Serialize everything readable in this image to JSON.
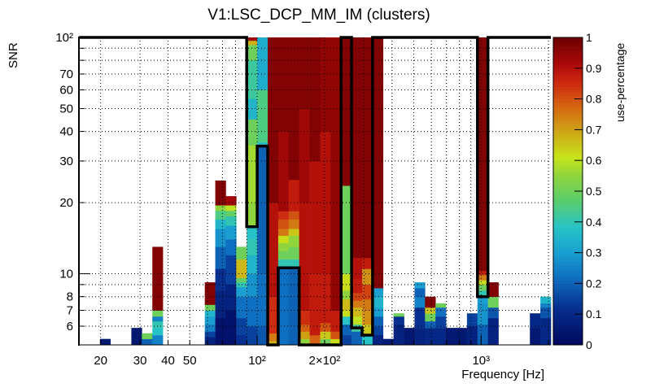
{
  "chart_data": {
    "type": "heatmap",
    "title": "V1:LSC_DCP_MM_IM (clusters)",
    "xlabel": "Frequency [Hz]",
    "ylabel": "SNR",
    "zlabel": "use-percentage",
    "xscale": "log",
    "yscale": "log",
    "xlim": [
      16,
      2048
    ],
    "ylim": [
      5,
      100
    ],
    "zlim": [
      0,
      1
    ],
    "n_freq_bins": 45,
    "grid": true,
    "x_ticks": [
      {
        "value": 20,
        "label": "20"
      },
      {
        "value": 30,
        "label": "30"
      },
      {
        "value": 40,
        "label": "40"
      },
      {
        "value": 50,
        "label": "50"
      },
      {
        "value": 100,
        "label": "10²"
      },
      {
        "value": 200,
        "label": "2×10²"
      },
      {
        "value": 1000,
        "label": "10³"
      }
    ],
    "y_ticks": [
      {
        "value": 6,
        "label": "6"
      },
      {
        "value": 7,
        "label": "7"
      },
      {
        "value": 8,
        "label": "8"
      },
      {
        "value": 10,
        "label": "10"
      },
      {
        "value": 20,
        "label": "20"
      },
      {
        "value": 30,
        "label": "30"
      },
      {
        "value": 40,
        "label": "40"
      },
      {
        "value": 50,
        "label": "50"
      },
      {
        "value": 60,
        "label": "60"
      },
      {
        "value": 70,
        "label": "70"
      },
      {
        "value": 100,
        "label": "10²"
      }
    ],
    "z_ticks": [
      "0",
      "0.1",
      "0.2",
      "0.3",
      "0.4",
      "0.5",
      "0.6",
      "0.7",
      "0.8",
      "0.9",
      "1"
    ],
    "columns_note": "each column: freq bin index, segments bottom-up as [upper SNR, use-percentage]",
    "columns": [
      {
        "bin": 2,
        "segments": [
          [
            5.3,
            0.05
          ]
        ]
      },
      {
        "bin": 5,
        "segments": [
          [
            5.9,
            0.05
          ]
        ]
      },
      {
        "bin": 6,
        "segments": [
          [
            5.3,
            0.2
          ],
          [
            5.6,
            0.5
          ]
        ]
      },
      {
        "bin": 7,
        "segments": [
          [
            5.5,
            0.25
          ],
          [
            5.9,
            0.38
          ],
          [
            6.3,
            0.4
          ],
          [
            6.6,
            0.25
          ],
          [
            7.0,
            0.5
          ],
          [
            13.0,
            0.97
          ]
        ]
      },
      {
        "bin": 12,
        "segments": [
          [
            5.4,
            0.08
          ],
          [
            5.7,
            0.15
          ],
          [
            6.1,
            0.25
          ],
          [
            6.6,
            0.3
          ],
          [
            7.0,
            0.35
          ],
          [
            7.4,
            0.5
          ],
          [
            9.2,
            0.97
          ]
        ]
      },
      {
        "bin": 13,
        "segments": [
          [
            6.5,
            0.03
          ],
          [
            8.5,
            0.08
          ],
          [
            10.5,
            0.12
          ],
          [
            13,
            0.2
          ],
          [
            15.5,
            0.28
          ],
          [
            17,
            0.35
          ],
          [
            18.5,
            0.45
          ],
          [
            19.5,
            0.55
          ],
          [
            24.8,
            0.97
          ]
        ]
      },
      {
        "bin": 14,
        "segments": [
          [
            7,
            0.03
          ],
          [
            9,
            0.08
          ],
          [
            12,
            0.15
          ],
          [
            14,
            0.22
          ],
          [
            16,
            0.3
          ],
          [
            17.5,
            0.4
          ],
          [
            18.5,
            0.48
          ],
          [
            19.5,
            0.6
          ],
          [
            21.3,
            0.93
          ]
        ]
      },
      {
        "bin": 15,
        "segments": [
          [
            5.5,
            0.12
          ],
          [
            6.5,
            0.15
          ],
          [
            8,
            0.22
          ],
          [
            8.8,
            0.3
          ],
          [
            9.2,
            0.4
          ],
          [
            9.6,
            0.48
          ],
          [
            11.5,
            0.67
          ],
          [
            13,
            0.5
          ]
        ]
      },
      {
        "bin": 16,
        "segments": [
          [
            6,
            0.15
          ],
          [
            8,
            0.22
          ],
          [
            10,
            0.28
          ],
          [
            12,
            0.35
          ],
          [
            14,
            0.4
          ],
          [
            16,
            0.38
          ],
          [
            20,
            0.55
          ],
          [
            35,
            0.57
          ],
          [
            45,
            0.5
          ],
          [
            55,
            0.35
          ],
          [
            80,
            0.42
          ],
          [
            93,
            0.5
          ],
          [
            97,
            0.68
          ],
          [
            100,
            0.93
          ]
        ]
      },
      {
        "bin": 17,
        "segments": [
          [
            6,
            0.18
          ],
          [
            10,
            0.22
          ],
          [
            34.7,
            0.2
          ],
          [
            36,
            0.37
          ],
          [
            60,
            0.45
          ],
          [
            100,
            0.33
          ]
        ]
      },
      {
        "bin": 18,
        "segments": [
          [
            5.2,
            0.68
          ],
          [
            5.6,
            0.75
          ],
          [
            8,
            0.85
          ],
          [
            20,
            0.9
          ],
          [
            100,
            0.97
          ]
        ]
      },
      {
        "bin": 19,
        "segments": [
          [
            10.6,
            0.22
          ],
          [
            11.5,
            0.4
          ],
          [
            12.5,
            0.5
          ],
          [
            13.5,
            0.55
          ],
          [
            14.5,
            0.62
          ],
          [
            15.5,
            0.75
          ],
          [
            17,
            0.8
          ],
          [
            18.4,
            0.85
          ],
          [
            40,
            0.93
          ],
          [
            100,
            0.97
          ]
        ]
      },
      {
        "bin": 20,
        "segments": [
          [
            10.6,
            0.2
          ],
          [
            11.5,
            0.4
          ],
          [
            13,
            0.5
          ],
          [
            14.5,
            0.55
          ],
          [
            15.5,
            0.65
          ],
          [
            17,
            0.75
          ],
          [
            18.4,
            0.8
          ],
          [
            25,
            0.88
          ],
          [
            100,
            0.97
          ]
        ]
      },
      {
        "bin": 21,
        "segments": [
          [
            5.3,
            0.55
          ],
          [
            5.7,
            0.7
          ],
          [
            6.1,
            0.78
          ],
          [
            7,
            0.85
          ],
          [
            20,
            0.9
          ],
          [
            50,
            0.93
          ],
          [
            100,
            0.97
          ]
        ]
      },
      {
        "bin": 22,
        "segments": [
          [
            5.5,
            0.78
          ],
          [
            10,
            0.88
          ],
          [
            30,
            0.9
          ],
          [
            100,
            0.97
          ]
        ]
      },
      {
        "bin": 23,
        "segments": [
          [
            5.3,
            0.5
          ],
          [
            5.7,
            0.65
          ],
          [
            6.2,
            0.8
          ],
          [
            10,
            0.88
          ],
          [
            40,
            0.9
          ],
          [
            100,
            0.95
          ]
        ]
      },
      {
        "bin": 24,
        "segments": [
          [
            5.3,
            0.62
          ],
          [
            5.7,
            0.8
          ],
          [
            7,
            0.88
          ],
          [
            100,
            0.95
          ]
        ]
      },
      {
        "bin": 25,
        "segments": [
          [
            5.5,
            0.15
          ],
          [
            6.1,
            0.2
          ],
          [
            6.6,
            0.38
          ],
          [
            7.0,
            0.62
          ],
          [
            7.8,
            0.67
          ],
          [
            8.5,
            0.55
          ],
          [
            10,
            0.62
          ],
          [
            23.6,
            0.5
          ],
          [
            100,
            0.97
          ]
        ]
      },
      {
        "bin": 26,
        "segments": [
          [
            5.7,
            0.2
          ],
          [
            6.1,
            0.42
          ],
          [
            6.6,
            0.6
          ],
          [
            7.2,
            0.67
          ],
          [
            7.7,
            0.75
          ],
          [
            8.3,
            0.82
          ],
          [
            9.5,
            0.88
          ],
          [
            11.7,
            0.9
          ],
          [
            100,
            0.97
          ]
        ]
      },
      {
        "bin": 27,
        "segments": [
          [
            5.5,
            0.38
          ],
          [
            6.1,
            0.65
          ],
          [
            7,
            0.72
          ],
          [
            7.8,
            0.75
          ],
          [
            9.0,
            0.82
          ],
          [
            10.5,
            0.72
          ],
          [
            11.7,
            0.88
          ],
          [
            100,
            0.97
          ]
        ]
      },
      {
        "bin": 28,
        "segments": [
          [
            5.5,
            0.08
          ],
          [
            6,
            0.15
          ],
          [
            6.6,
            0.2
          ],
          [
            7.2,
            0.3
          ],
          [
            8.0,
            0.35
          ],
          [
            8.7,
            0.3
          ],
          [
            100,
            0.97
          ]
        ]
      },
      {
        "bin": 29,
        "segments": [
          [
            5.3,
            0.05
          ]
        ]
      },
      {
        "bin": 30,
        "segments": [
          [
            6.1,
            0.08
          ],
          [
            6.6,
            0.12
          ],
          [
            6.8,
            0.5
          ]
        ]
      },
      {
        "bin": 31,
        "segments": [
          [
            5.9,
            0.05
          ]
        ]
      },
      {
        "bin": 32,
        "segments": [
          [
            5.9,
            0.08
          ],
          [
            7.2,
            0.12
          ],
          [
            8.0,
            0.25
          ],
          [
            8.7,
            0.2
          ],
          [
            9.2,
            0.3
          ]
        ]
      },
      {
        "bin": 33,
        "segments": [
          [
            5.9,
            0.1
          ],
          [
            6.3,
            0.2
          ],
          [
            6.8,
            0.5
          ],
          [
            7.2,
            0.65
          ],
          [
            8.0,
            0.97
          ]
        ]
      },
      {
        "bin": 34,
        "segments": [
          [
            5.9,
            0.1
          ],
          [
            6.6,
            0.15
          ],
          [
            7.2,
            0.22
          ],
          [
            7.5,
            0.5
          ]
        ]
      },
      {
        "bin": 35,
        "segments": [
          [
            5.9,
            0.05
          ]
        ]
      },
      {
        "bin": 36,
        "segments": [
          [
            5.9,
            0.05
          ]
        ]
      },
      {
        "bin": 37,
        "segments": [
          [
            6.0,
            0.08
          ],
          [
            6.8,
            0.15
          ]
        ]
      },
      {
        "bin": 38,
        "segments": [
          [
            6.1,
            0.2
          ],
          [
            7.5,
            0.28
          ],
          [
            8.0,
            0.3
          ],
          [
            8.5,
            0.4
          ],
          [
            9.0,
            0.5
          ],
          [
            9.4,
            0.62
          ],
          [
            9.9,
            0.75
          ],
          [
            10.3,
            0.87
          ],
          [
            100,
            0.97
          ]
        ]
      },
      {
        "bin": 39,
        "segments": [
          [
            6.5,
            0.08
          ],
          [
            7.2,
            0.18
          ],
          [
            8.0,
            0.5
          ],
          [
            9.2,
            0.97
          ]
        ]
      },
      {
        "bin": 43,
        "segments": [
          [
            5.9,
            0.05
          ],
          [
            6.8,
            0.1
          ]
        ]
      },
      {
        "bin": 44,
        "segments": [
          [
            6.5,
            0.1
          ],
          [
            7.2,
            0.18
          ],
          [
            7.5,
            0.25
          ],
          [
            8.0,
            0.35
          ]
        ]
      }
    ],
    "cluster_outline_note": "vertices as [freq bin edge index, SNR]",
    "cluster_outline": [
      [
        0,
        100
      ],
      [
        16,
        100
      ],
      [
        16,
        15.8
      ],
      [
        17,
        15.8
      ],
      [
        17,
        34.7
      ],
      [
        18,
        34.7
      ],
      [
        18,
        5
      ],
      [
        19,
        5
      ],
      [
        19,
        10.6
      ],
      [
        21,
        10.6
      ],
      [
        21,
        5
      ],
      [
        25,
        5
      ],
      [
        25,
        100
      ],
      [
        26,
        100
      ],
      [
        26,
        5.9
      ],
      [
        27,
        5.9
      ],
      [
        27,
        5.5
      ],
      [
        28,
        5.5
      ],
      [
        28,
        100
      ],
      [
        38,
        100
      ],
      [
        38,
        8.0
      ],
      [
        39,
        8.0
      ],
      [
        39,
        100
      ],
      [
        45,
        100
      ]
    ],
    "palette": [
      [
        0,
        "#00075c"
      ],
      [
        0.12,
        "#062f8f"
      ],
      [
        0.22,
        "#0f6fc0"
      ],
      [
        0.3,
        "#1a9fd0"
      ],
      [
        0.38,
        "#26c2c6"
      ],
      [
        0.47,
        "#5acd6e"
      ],
      [
        0.55,
        "#8fd43c"
      ],
      [
        0.61,
        "#c6e41a"
      ],
      [
        0.68,
        "#cdb116"
      ],
      [
        0.77,
        "#d46a12"
      ],
      [
        0.86,
        "#cc2410"
      ],
      [
        0.92,
        "#a80808"
      ],
      [
        1,
        "#6a0000"
      ]
    ]
  }
}
